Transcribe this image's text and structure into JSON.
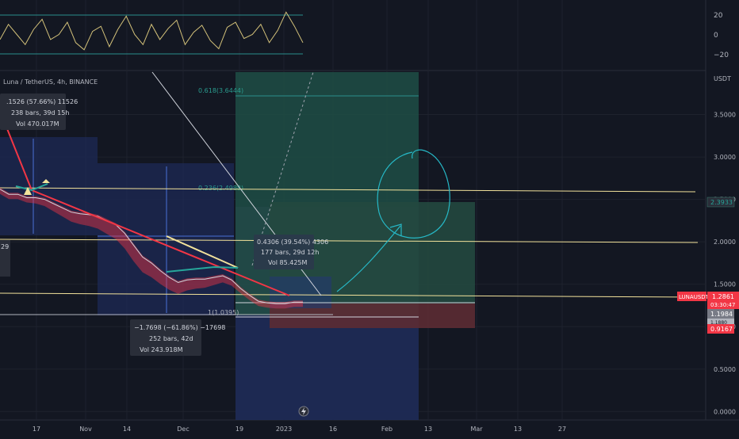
{
  "symbol_title": "Luna / TetherUS, 4h, BINANCE",
  "currency": "USDT",
  "osc": {
    "ticks": [
      20,
      0,
      -20
    ],
    "tick_labels": [
      "20",
      "0",
      "−20"
    ]
  },
  "measure_up": {
    "line1": ".1526 (57.66%) 11526",
    "line2": "238 bars, 39d 15h",
    "line3": "Vol 470.017M"
  },
  "measure_down": {
    "line1": "−1.7698 (−61.86%) −17698",
    "line2": "252 bars, 42d",
    "line3": "Vol 243.918M"
  },
  "measure_mid": {
    "line1": "0.4306 (39.54%) 4306",
    "line2": "177 bars, 29d 12h",
    "line3": "Vol 85.425M"
  },
  "left_cut": "29",
  "fib": {
    "f618": "0.618(3.6444)",
    "f236": "0.236(2.4988)",
    "f1": "1(1.0395)"
  },
  "price_labels": {
    "yellow_top": "2.3933",
    "last_name": "LUNAUSDT",
    "last_price": "1.2861",
    "countdown": "03:30:47",
    "grey": "1.1984",
    "grey2": "1.1880",
    "stop": "0.9167"
  },
  "colors": {
    "bg": "#131722",
    "grid": "#1e222d",
    "text": "#b2b5be",
    "green_zone": "#1e4d45",
    "red_zone": "#5c2b33",
    "blue_box": "#1e2a55",
    "yellow": "#f2e29b",
    "red_line": "#f23645",
    "teal": "#2a8e8c"
  },
  "chart_data": {
    "type": "line",
    "title": "Luna / TetherUS, 4h, BINANCE",
    "xlabel": "",
    "ylabel": "USDT",
    "x_ticks": [
      "17",
      "Nov",
      "14",
      "Dec",
      "19",
      "2023",
      "16",
      "Feb",
      "13",
      "Mar",
      "13",
      "27"
    ],
    "y_ticks": [
      0.0,
      0.5,
      1.0,
      1.5,
      2.0,
      2.5,
      3.0,
      3.5
    ],
    "y_tick_labels": [
      "0.0000",
      "0.5000",
      "1.0000",
      "1.5000",
      "2.0000",
      "2.5000",
      "3.0000",
      "3.5000"
    ],
    "ylim": [
      -0.1,
      4.0
    ],
    "grid": true,
    "series": [
      {
        "type": "line",
        "values": [
          2.62,
          2.56,
          2.56,
          2.52,
          2.52,
          2.5,
          2.45,
          2.4,
          2.35,
          2.33,
          2.32,
          2.3,
          2.25,
          2.2,
          2.1,
          1.96,
          1.82,
          1.75,
          1.66,
          1.58,
          1.52,
          1.55,
          1.56,
          1.56,
          1.58,
          1.6,
          1.55,
          1.45,
          1.37,
          1.3,
          1.28,
          1.27,
          1.27,
          1.29,
          1.29
        ]
      }
    ],
    "oscillator": {
      "type": "line",
      "ylim": [
        -30,
        30
      ],
      "bands": [
        20,
        -20
      ],
      "values": [
        -5,
        10,
        0,
        -10,
        5,
        15,
        -5,
        0,
        12,
        -8,
        -15,
        3,
        8,
        -12,
        5,
        18,
        0,
        -10,
        10,
        -5,
        6,
        14,
        -10,
        2,
        9,
        -6,
        -14,
        7,
        12,
        -4,
        0,
        10,
        -8,
        4,
        22,
        8,
        -8
      ]
    }
  }
}
